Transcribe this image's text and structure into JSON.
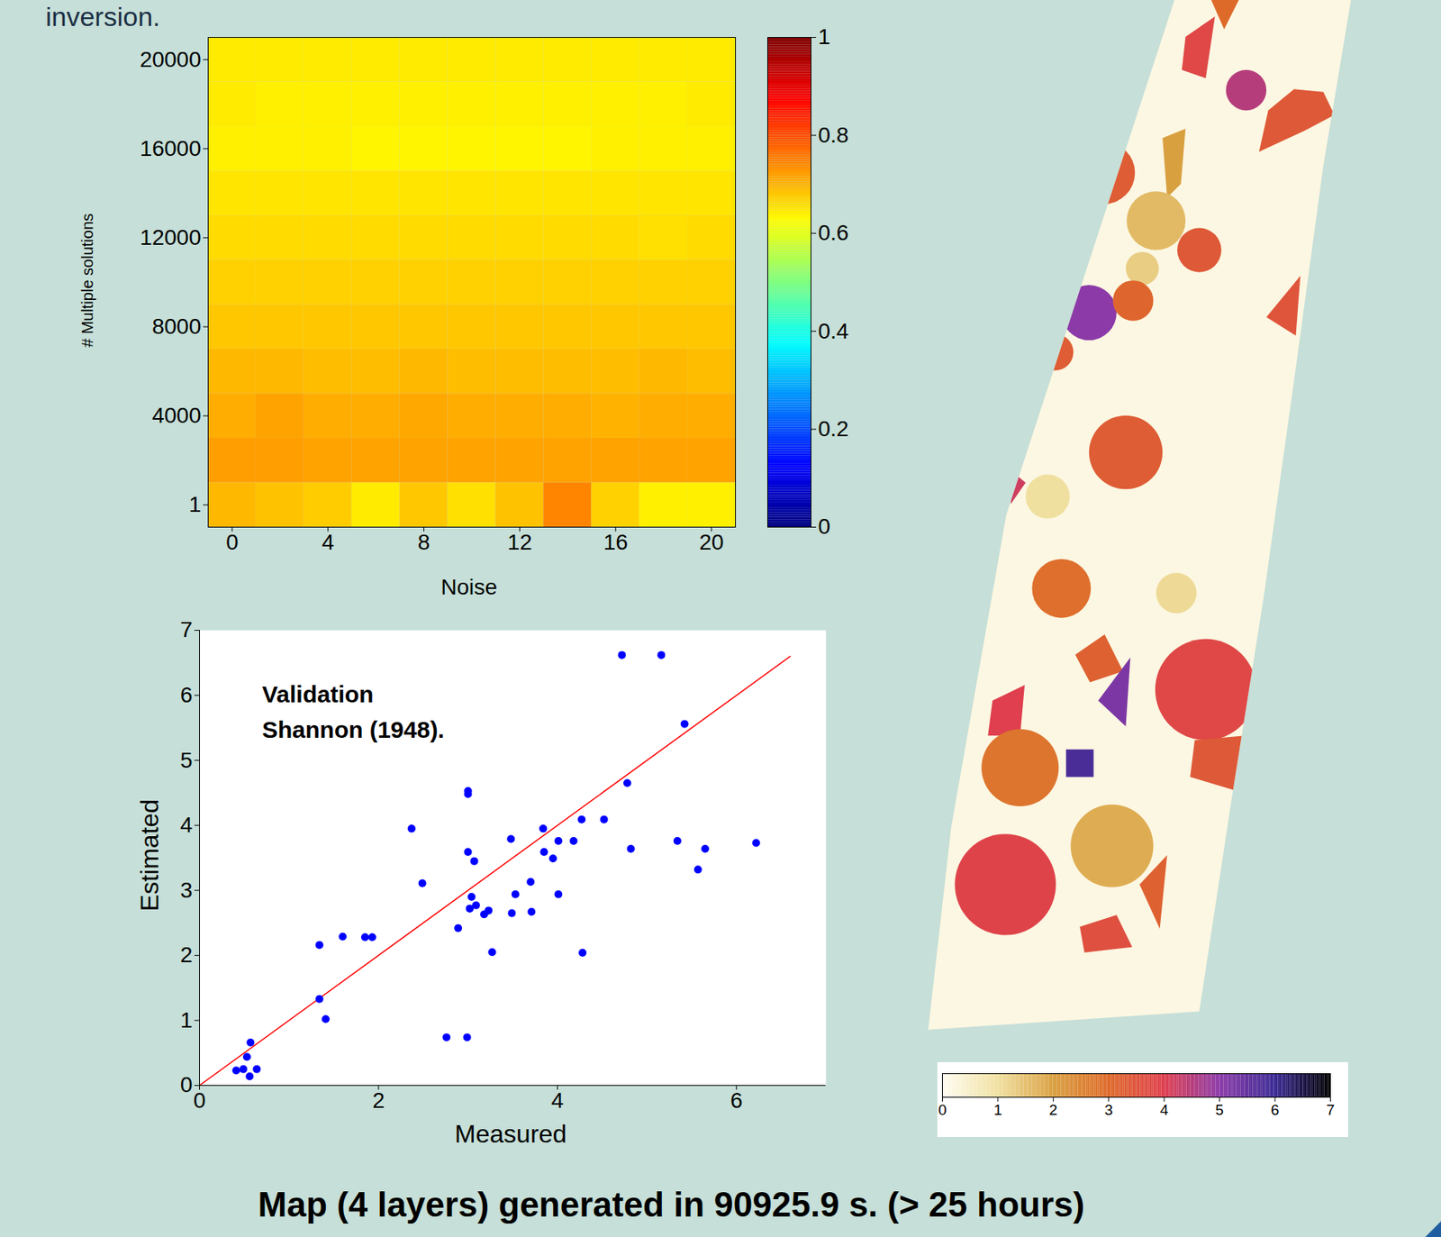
{
  "header": {
    "text": "inversion."
  },
  "chart_data": [
    {
      "type": "heatmap",
      "xlabel": "Noise",
      "ylabel": "# Multiple solutions",
      "x": [
        0,
        2,
        4,
        6,
        8,
        10,
        12,
        14,
        16,
        18,
        20
      ],
      "y": [
        1,
        2000,
        4000,
        6000,
        8000,
        10000,
        12000,
        14000,
        16000,
        18000,
        20000
      ],
      "cells": [
        [
          0.695,
          0.685,
          0.675,
          0.645,
          0.68,
          0.655,
          0.685,
          0.745,
          0.67,
          0.64,
          0.64
        ],
        [
          0.72,
          0.72,
          0.715,
          0.715,
          0.715,
          0.715,
          0.715,
          0.715,
          0.715,
          0.715,
          0.715
        ],
        [
          0.705,
          0.715,
          0.705,
          0.705,
          0.71,
          0.705,
          0.705,
          0.705,
          0.7,
          0.705,
          0.705
        ],
        [
          0.695,
          0.695,
          0.69,
          0.69,
          0.695,
          0.69,
          0.69,
          0.69,
          0.69,
          0.695,
          0.69
        ],
        [
          0.68,
          0.68,
          0.68,
          0.68,
          0.68,
          0.68,
          0.68,
          0.68,
          0.68,
          0.68,
          0.68
        ],
        [
          0.67,
          0.67,
          0.67,
          0.67,
          0.67,
          0.67,
          0.67,
          0.67,
          0.67,
          0.67,
          0.67
        ],
        [
          0.66,
          0.66,
          0.66,
          0.66,
          0.66,
          0.66,
          0.66,
          0.66,
          0.66,
          0.655,
          0.66
        ],
        [
          0.65,
          0.65,
          0.65,
          0.65,
          0.65,
          0.65,
          0.65,
          0.65,
          0.65,
          0.65,
          0.65
        ],
        [
          0.64,
          0.64,
          0.64,
          0.635,
          0.635,
          0.635,
          0.635,
          0.635,
          0.64,
          0.64,
          0.64
        ],
        [
          0.645,
          0.64,
          0.64,
          0.64,
          0.64,
          0.64,
          0.64,
          0.64,
          0.64,
          0.64,
          0.645
        ],
        [
          0.645,
          0.645,
          0.645,
          0.645,
          0.645,
          0.645,
          0.645,
          0.645,
          0.645,
          0.645,
          0.645
        ]
      ],
      "xlim": [
        -1,
        21
      ],
      "ylim": [
        -1000,
        21000
      ],
      "xticks": [
        0,
        4,
        8,
        12,
        16,
        20
      ],
      "yticks": [
        1,
        4000,
        8000,
        12000,
        16000,
        20000
      ],
      "colorbar": {
        "lim": [
          0,
          1
        ],
        "ticks": [
          0,
          0.2,
          0.4,
          0.6,
          0.8,
          1
        ]
      }
    },
    {
      "type": "scatter",
      "xlabel": "Measured",
      "ylabel": "Estimated",
      "annotation": [
        "Validation",
        "Shannon (1948)."
      ],
      "x": [
        4.72,
        5.16,
        5.42,
        4.78,
        3.0,
        3.0,
        2.37,
        3.84,
        4.27,
        4.52,
        3.48,
        3.0,
        3.07,
        3.85,
        3.95,
        4.01,
        4.18,
        4.82,
        5.34,
        5.65,
        6.22,
        5.57,
        2.49,
        3.7,
        3.53,
        4.01,
        3.04,
        3.09,
        3.02,
        3.23,
        3.18,
        3.49,
        3.71,
        2.89,
        3.27,
        4.28,
        1.6,
        1.85,
        1.93,
        1.34,
        1.34,
        1.41,
        2.76,
        2.99,
        0.57,
        0.53,
        0.41,
        0.49,
        0.64,
        0.56
      ],
      "y": [
        6.62,
        6.62,
        5.56,
        4.65,
        4.53,
        4.48,
        3.95,
        3.95,
        4.09,
        4.09,
        3.79,
        3.59,
        3.45,
        3.59,
        3.49,
        3.76,
        3.76,
        3.64,
        3.76,
        3.64,
        3.73,
        3.32,
        3.11,
        3.13,
        2.94,
        2.94,
        2.9,
        2.77,
        2.72,
        2.69,
        2.63,
        2.65,
        2.67,
        2.42,
        2.05,
        2.04,
        2.29,
        2.28,
        2.28,
        2.16,
        1.33,
        1.02,
        0.74,
        0.74,
        0.66,
        0.44,
        0.23,
        0.25,
        0.25,
        0.14
      ],
      "color": "#0000ff",
      "line": {
        "x": [
          0,
          6.6
        ],
        "y": [
          0,
          6.6
        ],
        "color": "#ff0000"
      },
      "xlim": [
        0,
        7
      ],
      "ylim": [
        0,
        7
      ],
      "xticks": [
        0,
        2,
        4,
        6
      ],
      "yticks": [
        0,
        1,
        2,
        3,
        4,
        5,
        6,
        7
      ]
    },
    {
      "type": "map",
      "background_value": 0.2,
      "field_values": [
        3.8,
        3.0,
        4.5,
        3.4,
        2.0,
        3.3,
        1.6,
        3.4,
        1.3,
        5.0,
        3.1,
        3.3,
        3.5,
        3.3,
        4.2,
        1.0,
        2.9,
        1.1,
        3.2,
        4.0,
        3.8,
        5.2,
        2.8,
        5.8,
        3.4,
        1.8,
        3.9,
        3.6,
        3.2
      ],
      "colorbar": {
        "lim": [
          0,
          7
        ],
        "ticks": [
          0,
          1,
          2,
          3,
          4,
          5,
          6,
          7
        ]
      }
    }
  ],
  "caption": "Map (4 layers) generated in 90925.9 s. (> 25 hours)"
}
